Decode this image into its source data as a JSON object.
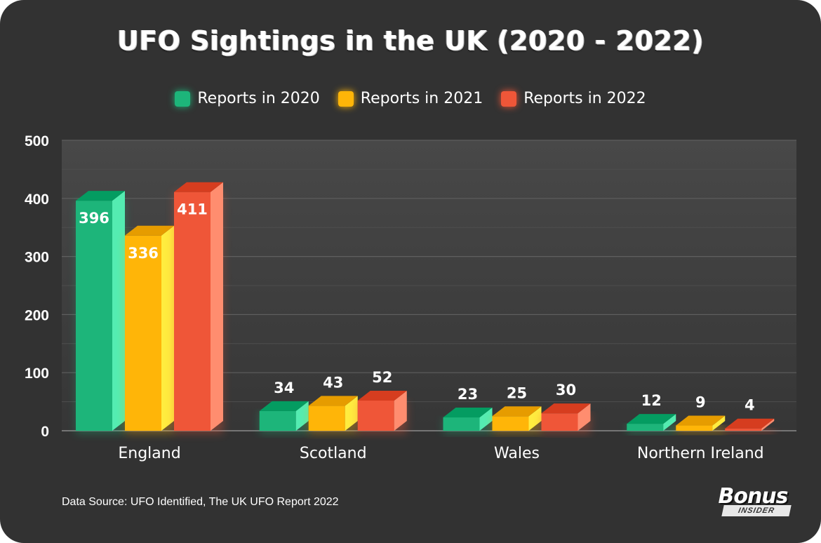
{
  "title": "UFO Sightings in the UK (2020 - 2022)",
  "source": "Data Source: UFO Identified, The UK UFO Report 2022",
  "logo": {
    "main": "Bonus",
    "sub": "INSIDER"
  },
  "colors": {
    "background": "#323232",
    "plot": "#3d3d3d",
    "grid": "#5a5a5a"
  },
  "chart_data": {
    "type": "bar",
    "title": "UFO Sightings in the UK (2020 - 2022)",
    "categories": [
      "England",
      "Scotland",
      "Wales",
      "Northern Ireland"
    ],
    "series": [
      {
        "name": "Reports in 2020",
        "color": "#1db57a",
        "values": [
          396,
          34,
          23,
          12
        ]
      },
      {
        "name": "Reports in 2021",
        "color": "#ffb508",
        "values": [
          336,
          43,
          25,
          9
        ]
      },
      {
        "name": "Reports in 2022",
        "color": "#ef5638",
        "values": [
          411,
          52,
          30,
          4
        ]
      }
    ],
    "ylim": [
      0,
      500
    ],
    "yticks": [
      0,
      100,
      200,
      300,
      400,
      500
    ],
    "grid": true,
    "legend_position": "top-center",
    "data_labels": true
  }
}
